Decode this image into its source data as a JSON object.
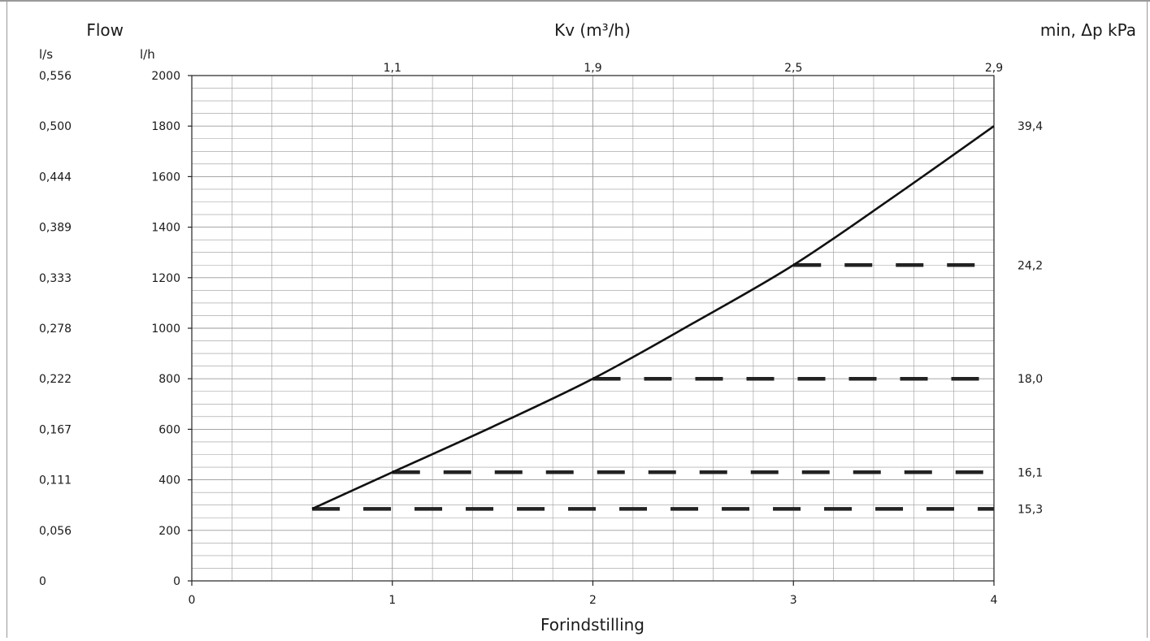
{
  "chart_data": {
    "type": "line",
    "title": "",
    "left_title": "Flow",
    "top_axis_title": "Kv (m³/h)",
    "right_title": "min, Δp kPa",
    "xlabel": "Forindstilling",
    "unit_ls": "l/s",
    "unit_lh": "l/h",
    "x_ticks": [
      "0",
      "1",
      "2",
      "3",
      "4"
    ],
    "y_ticks": [
      "0",
      "200",
      "400",
      "600",
      "800",
      "1000",
      "1200",
      "1400",
      "1600",
      "1800",
      "2000"
    ],
    "ls_ticks": [
      "0",
      "0,056",
      "0,111",
      "0,167",
      "0,222",
      "0,278",
      "0,333",
      "0,389",
      "0,444",
      "0,500",
      "0,556"
    ],
    "kv_ticks": [
      {
        "x": 1,
        "label": "1,1"
      },
      {
        "x": 2,
        "label": "1,9"
      },
      {
        "x": 3,
        "label": "2,5"
      },
      {
        "x": 4,
        "label": "2,9"
      }
    ],
    "xlim": [
      0,
      4
    ],
    "ylim": [
      0,
      2000
    ],
    "grid": true,
    "series": [
      {
        "style": "solid",
        "x": [
          0.6,
          1,
          1.5,
          2,
          2.5,
          3,
          3.5,
          4
        ],
        "y": [
          285,
          430,
          610,
          800,
          1020,
          1250,
          1520,
          1800
        ]
      }
    ],
    "reference_lines": [
      {
        "x_start": 0.6,
        "y": 285,
        "dp_label": "15,3"
      },
      {
        "x_start": 1.0,
        "y": 430,
        "dp_label": "16,1"
      },
      {
        "x_start": 2.0,
        "y": 800,
        "dp_label": "18,0"
      },
      {
        "x_start": 3.0,
        "y": 1250,
        "dp_label": "24,2"
      },
      {
        "x_start": 4.0,
        "y": 1800,
        "dp_label": "39,4"
      }
    ]
  }
}
